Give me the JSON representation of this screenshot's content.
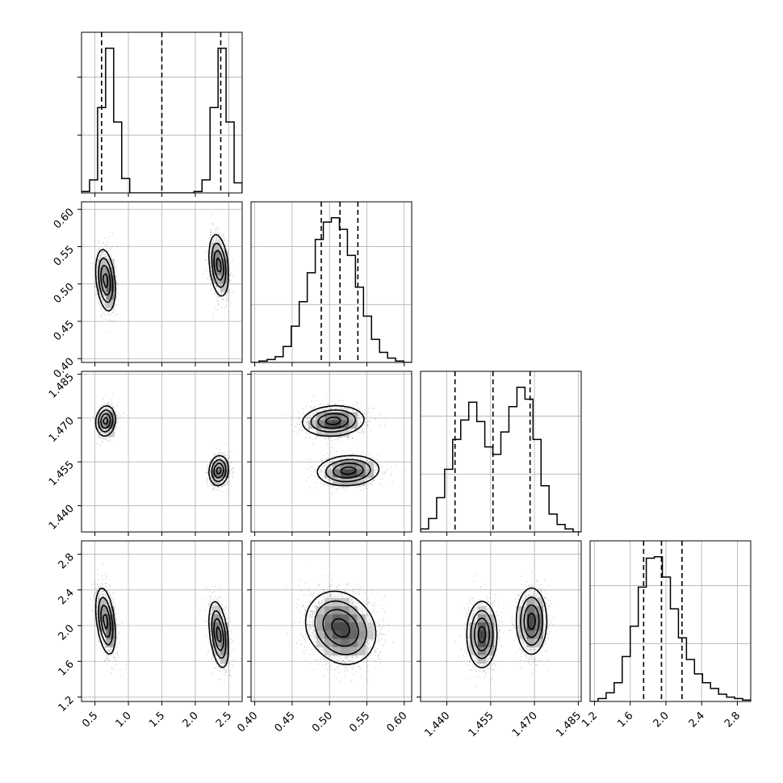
{
  "chart_data": {
    "type": "corner",
    "grid": true,
    "params": [
      {
        "range": [
          0.3,
          2.7
        ],
        "ticks": [
          0.5,
          1.0,
          1.5,
          2.0,
          2.5
        ],
        "tick_labels": [
          "0.5",
          "1.0",
          "1.5",
          "2.0",
          "2.5"
        ],
        "quantiles": [
          0.6,
          1.5,
          2.38
        ],
        "hist": {
          "edges": [
            0.3,
            0.42,
            0.54,
            0.66,
            0.78,
            0.9,
            1.02,
            1.14,
            1.26,
            1.38,
            1.5,
            1.62,
            1.74,
            1.86,
            1.98,
            2.1,
            2.22,
            2.34,
            2.46,
            2.58,
            2.7
          ],
          "counts": [
            0.01,
            0.09,
            0.59,
            1.0,
            0.49,
            0.1,
            0,
            0,
            0,
            0,
            0,
            0,
            0,
            0,
            0.01,
            0.09,
            0.59,
            1.0,
            0.49,
            0.07
          ]
        }
      },
      {
        "range": [
          0.395,
          0.61
        ],
        "ticks": [
          0.4,
          0.45,
          0.5,
          0.55,
          0.6
        ],
        "tick_labels": [
          "0.40",
          "0.45",
          "0.50",
          "0.55",
          "0.60"
        ],
        "quantiles": [
          0.489,
          0.514,
          0.538
        ],
        "hist": {
          "edges": [
            0.395,
            0.40575,
            0.4165,
            0.42725,
            0.438,
            0.44875,
            0.4595,
            0.47025,
            0.481,
            0.49175,
            0.5025,
            0.51325,
            0.524,
            0.53475,
            0.5455,
            0.55625,
            0.567,
            0.57775,
            0.5885,
            0.59925,
            0.61
          ],
          "counts": [
            0,
            0.01,
            0.02,
            0.04,
            0.11,
            0.25,
            0.42,
            0.62,
            0.85,
            0.97,
            1.0,
            0.92,
            0.74,
            0.52,
            0.32,
            0.16,
            0.07,
            0.03,
            0.01,
            0.0
          ]
        }
      },
      {
        "range": [
          1.431,
          1.486
        ],
        "ticks": [
          1.44,
          1.455,
          1.47,
          1.485
        ],
        "tick_labels": [
          "1.440",
          "1.455",
          "1.470",
          "1.485"
        ],
        "quantiles": [
          1.4428,
          1.4558,
          1.4685
        ],
        "hist": {
          "edges": [
            1.431,
            1.43375,
            1.4365,
            1.43925,
            1.442,
            1.44475,
            1.4475,
            1.45025,
            1.453,
            1.45575,
            1.4585,
            1.46125,
            1.464,
            1.46675,
            1.4695,
            1.47225,
            1.475,
            1.47775,
            1.4805,
            1.48325,
            1.486
          ],
          "counts": [
            0.02,
            0.09,
            0.23,
            0.42,
            0.62,
            0.75,
            0.87,
            0.74,
            0.57,
            0.52,
            0.67,
            0.84,
            0.97,
            0.89,
            0.62,
            0.31,
            0.12,
            0.05,
            0.02,
            0.0
          ]
        }
      },
      {
        "range": [
          1.15,
          2.95
        ],
        "ticks": [
          1.2,
          1.6,
          2.0,
          2.4,
          2.8
        ],
        "tick_labels": [
          "1.2",
          "1.6",
          "2.0",
          "2.4",
          "2.8"
        ],
        "quantiles": [
          1.75,
          1.95,
          2.18
        ],
        "hist": {
          "edges": [
            1.15,
            1.24,
            1.33,
            1.42,
            1.51,
            1.6,
            1.69,
            1.78,
            1.87,
            1.96,
            2.05,
            2.14,
            2.23,
            2.32,
            2.41,
            2.5,
            2.59,
            2.68,
            2.77,
            2.86,
            2.95
          ],
          "counts": [
            0.0,
            0.02,
            0.06,
            0.13,
            0.31,
            0.52,
            0.79,
            0.99,
            1.0,
            0.86,
            0.64,
            0.44,
            0.29,
            0.19,
            0.13,
            0.09,
            0.05,
            0.03,
            0.02,
            0.01
          ]
        }
      }
    ],
    "modes": [
      {
        "weight": 0.5,
        "mean": [
          0.66,
          0.505,
          1.469,
          2.05
        ],
        "sd": [
          0.07,
          0.02,
          0.0025,
          0.18
        ],
        "rho": [
          [
            1,
            -0.3,
            0.1,
            -0.4
          ],
          [
            -0.3,
            1,
            0.1,
            0.0
          ],
          [
            0.1,
            0.1,
            1,
            0.0
          ],
          [
            -0.4,
            0.0,
            0.0,
            1
          ]
        ]
      },
      {
        "weight": 0.5,
        "mean": [
          2.35,
          0.525,
          1.452,
          1.9
        ],
        "sd": [
          0.07,
          0.02,
          0.0025,
          0.18
        ],
        "rho": [
          [
            1,
            -0.3,
            0.1,
            -0.4
          ],
          [
            -0.3,
            1,
            0.1,
            0.0
          ],
          [
            0.1,
            0.1,
            1,
            0.0
          ],
          [
            -0.4,
            0.0,
            0.0,
            1
          ]
        ]
      }
    ]
  }
}
